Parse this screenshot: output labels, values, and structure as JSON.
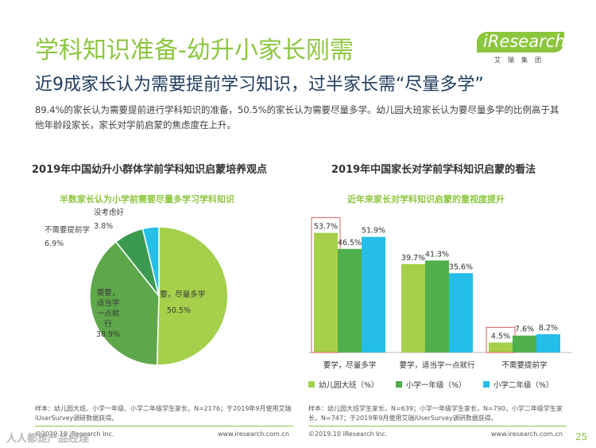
{
  "header": {
    "title": "学科知识准备-幼升小家长刚需",
    "subtitle": "近9成家长认为需要提前学习知识，过半家长需“尽量多学”",
    "description": "89.4%的家长认为需要提前进行学科知识的准备，50.5%的家长认为需要尽量多学。幼儿园大班家长认为要尽量多学的比例高于其他年龄段家长，家长对学前启蒙的焦虑度在上升。",
    "logo_text": "iResearch",
    "logo_sub": "艾瑞集团"
  },
  "colors": {
    "accent": "#8cc63f",
    "navy": "#1f3b5c",
    "pie_need_more": "#a6cf4a",
    "pie_need_some": "#5ea74b",
    "pie_no_need": "#3c9a50",
    "pie_unsure": "#26c0e6",
    "bar_kinder": "#a6cf4a",
    "bar_g1": "#4faf4b",
    "bar_g2": "#25bdea",
    "box_red": "#e06060"
  },
  "left": {
    "title": "2019年中国幼升小群体学前学科知识启蒙培养观点",
    "highlight": "半数家长认为小学前需要尽量多学习学科知识",
    "note": "样本：幼儿园大班、小学一年级、小学二年级学生家长，N=2176；于2019年9月使用艾瑞iUserSurvey调研数据获得。",
    "footer": "©2019.10 iResearch Inc.",
    "footer_url": "www.iresearch.com.cn"
  },
  "right": {
    "title": "2019年中国家长对学前学科知识启蒙的看法",
    "highlight": "近年来家长对学科知识启蒙的重视度提升",
    "note": "样本：幼儿园大班学生家长，N=639；小学一年级学生家长，N=790，小学二年级学生家长，N=747；于2019年9月使用艾瑞iUserSurvey调研数据获得。",
    "footer": "©2019.10 iResearch Inc.",
    "footer_url": "www.iresearch.com.cn"
  },
  "page_number": "25",
  "watermark": "人人都是产品经理",
  "chart_data": [
    {
      "type": "pie",
      "title": "2019年中国幼升小群体学前学科知识启蒙培养观点",
      "slices": [
        {
          "label": "需要，尽量多学",
          "value": 50.5,
          "display": "50.5%",
          "color": "#a6cf4a"
        },
        {
          "label": "需要，适当学一点就行",
          "value": 38.9,
          "display": "38.9%",
          "color": "#5ea74b"
        },
        {
          "label": "不需要提前学",
          "value": 6.9,
          "display": "6.9%",
          "color": "#3c9a50"
        },
        {
          "label": "没考虑好",
          "value": 3.8,
          "display": "3.8%",
          "color": "#26c0e6"
        }
      ]
    },
    {
      "type": "bar",
      "title": "2019年中国家长对学前学科知识启蒙的看法",
      "categories": [
        "要学，尽量多学",
        "要学，适当学一点就行",
        "不需要提前学"
      ],
      "series": [
        {
          "name": "幼儿园大班（%）",
          "values": [
            53.7,
            39.7,
            4.5
          ],
          "color": "#a6cf4a"
        },
        {
          "name": "小学一年级（%）",
          "values": [
            46.5,
            41.3,
            7.6
          ],
          "color": "#4faf4b"
        },
        {
          "name": "小学二年级（%）",
          "values": [
            51.9,
            35.6,
            8.2
          ],
          "color": "#25bdea"
        }
      ],
      "boxed_values": [
        "53.7%",
        "4.5%"
      ],
      "ylim": [
        0,
        60
      ]
    }
  ]
}
